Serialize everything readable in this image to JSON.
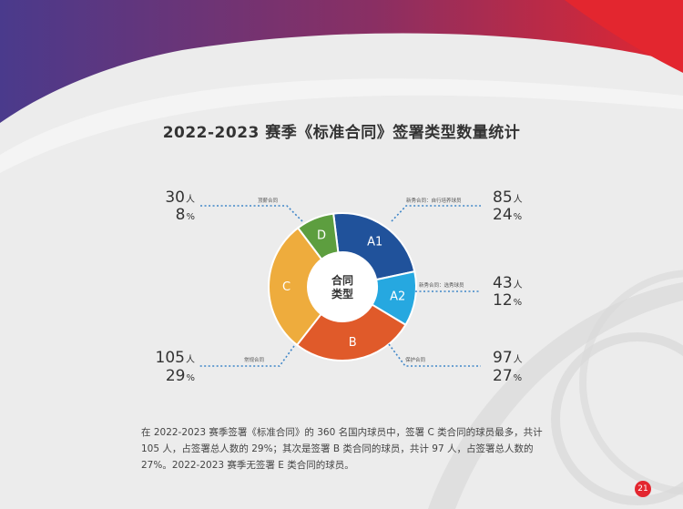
{
  "page": {
    "number": "21"
  },
  "colors": {
    "accent": "#e3262f",
    "purple": "#6b3f8f",
    "text": "#444444",
    "leader": "#3f86c8"
  },
  "chart_data": {
    "type": "pie",
    "title": "2022-2023 赛季《标准合同》签署类型数量统计",
    "center_label": [
      "合同",
      "类型"
    ],
    "total": 360,
    "slices": [
      {
        "key": "A1",
        "category": "新秀合同：自行培养球员",
        "count": 85,
        "count_unit": "人",
        "percent": 24,
        "color": "#20529b"
      },
      {
        "key": "A2",
        "category": "新秀合同：选秀球员",
        "count": 43,
        "count_unit": "人",
        "percent": 12,
        "color": "#26a8e0"
      },
      {
        "key": "B",
        "category": "保护合同",
        "count": 97,
        "count_unit": "人",
        "percent": 27,
        "color": "#e05a2a"
      },
      {
        "key": "C",
        "category": "常规合同",
        "count": 105,
        "count_unit": "人",
        "percent": 29,
        "color": "#eeac3d"
      },
      {
        "key": "D",
        "category": "顶薪合同",
        "count": 30,
        "count_unit": "人",
        "percent": 8,
        "color": "#5d9e3f"
      }
    ]
  },
  "paragraph": "在 2022-2023 赛季签署《标准合同》的 360 名国内球员中，签署 C 类合同的球员最多，共计 105 人，占签署总人数的 29%；其次是签署 B 类合同的球员，共计 97 人，占签署总人数的 27%。2022-2023 赛季无签署 E 类合同的球员。"
}
